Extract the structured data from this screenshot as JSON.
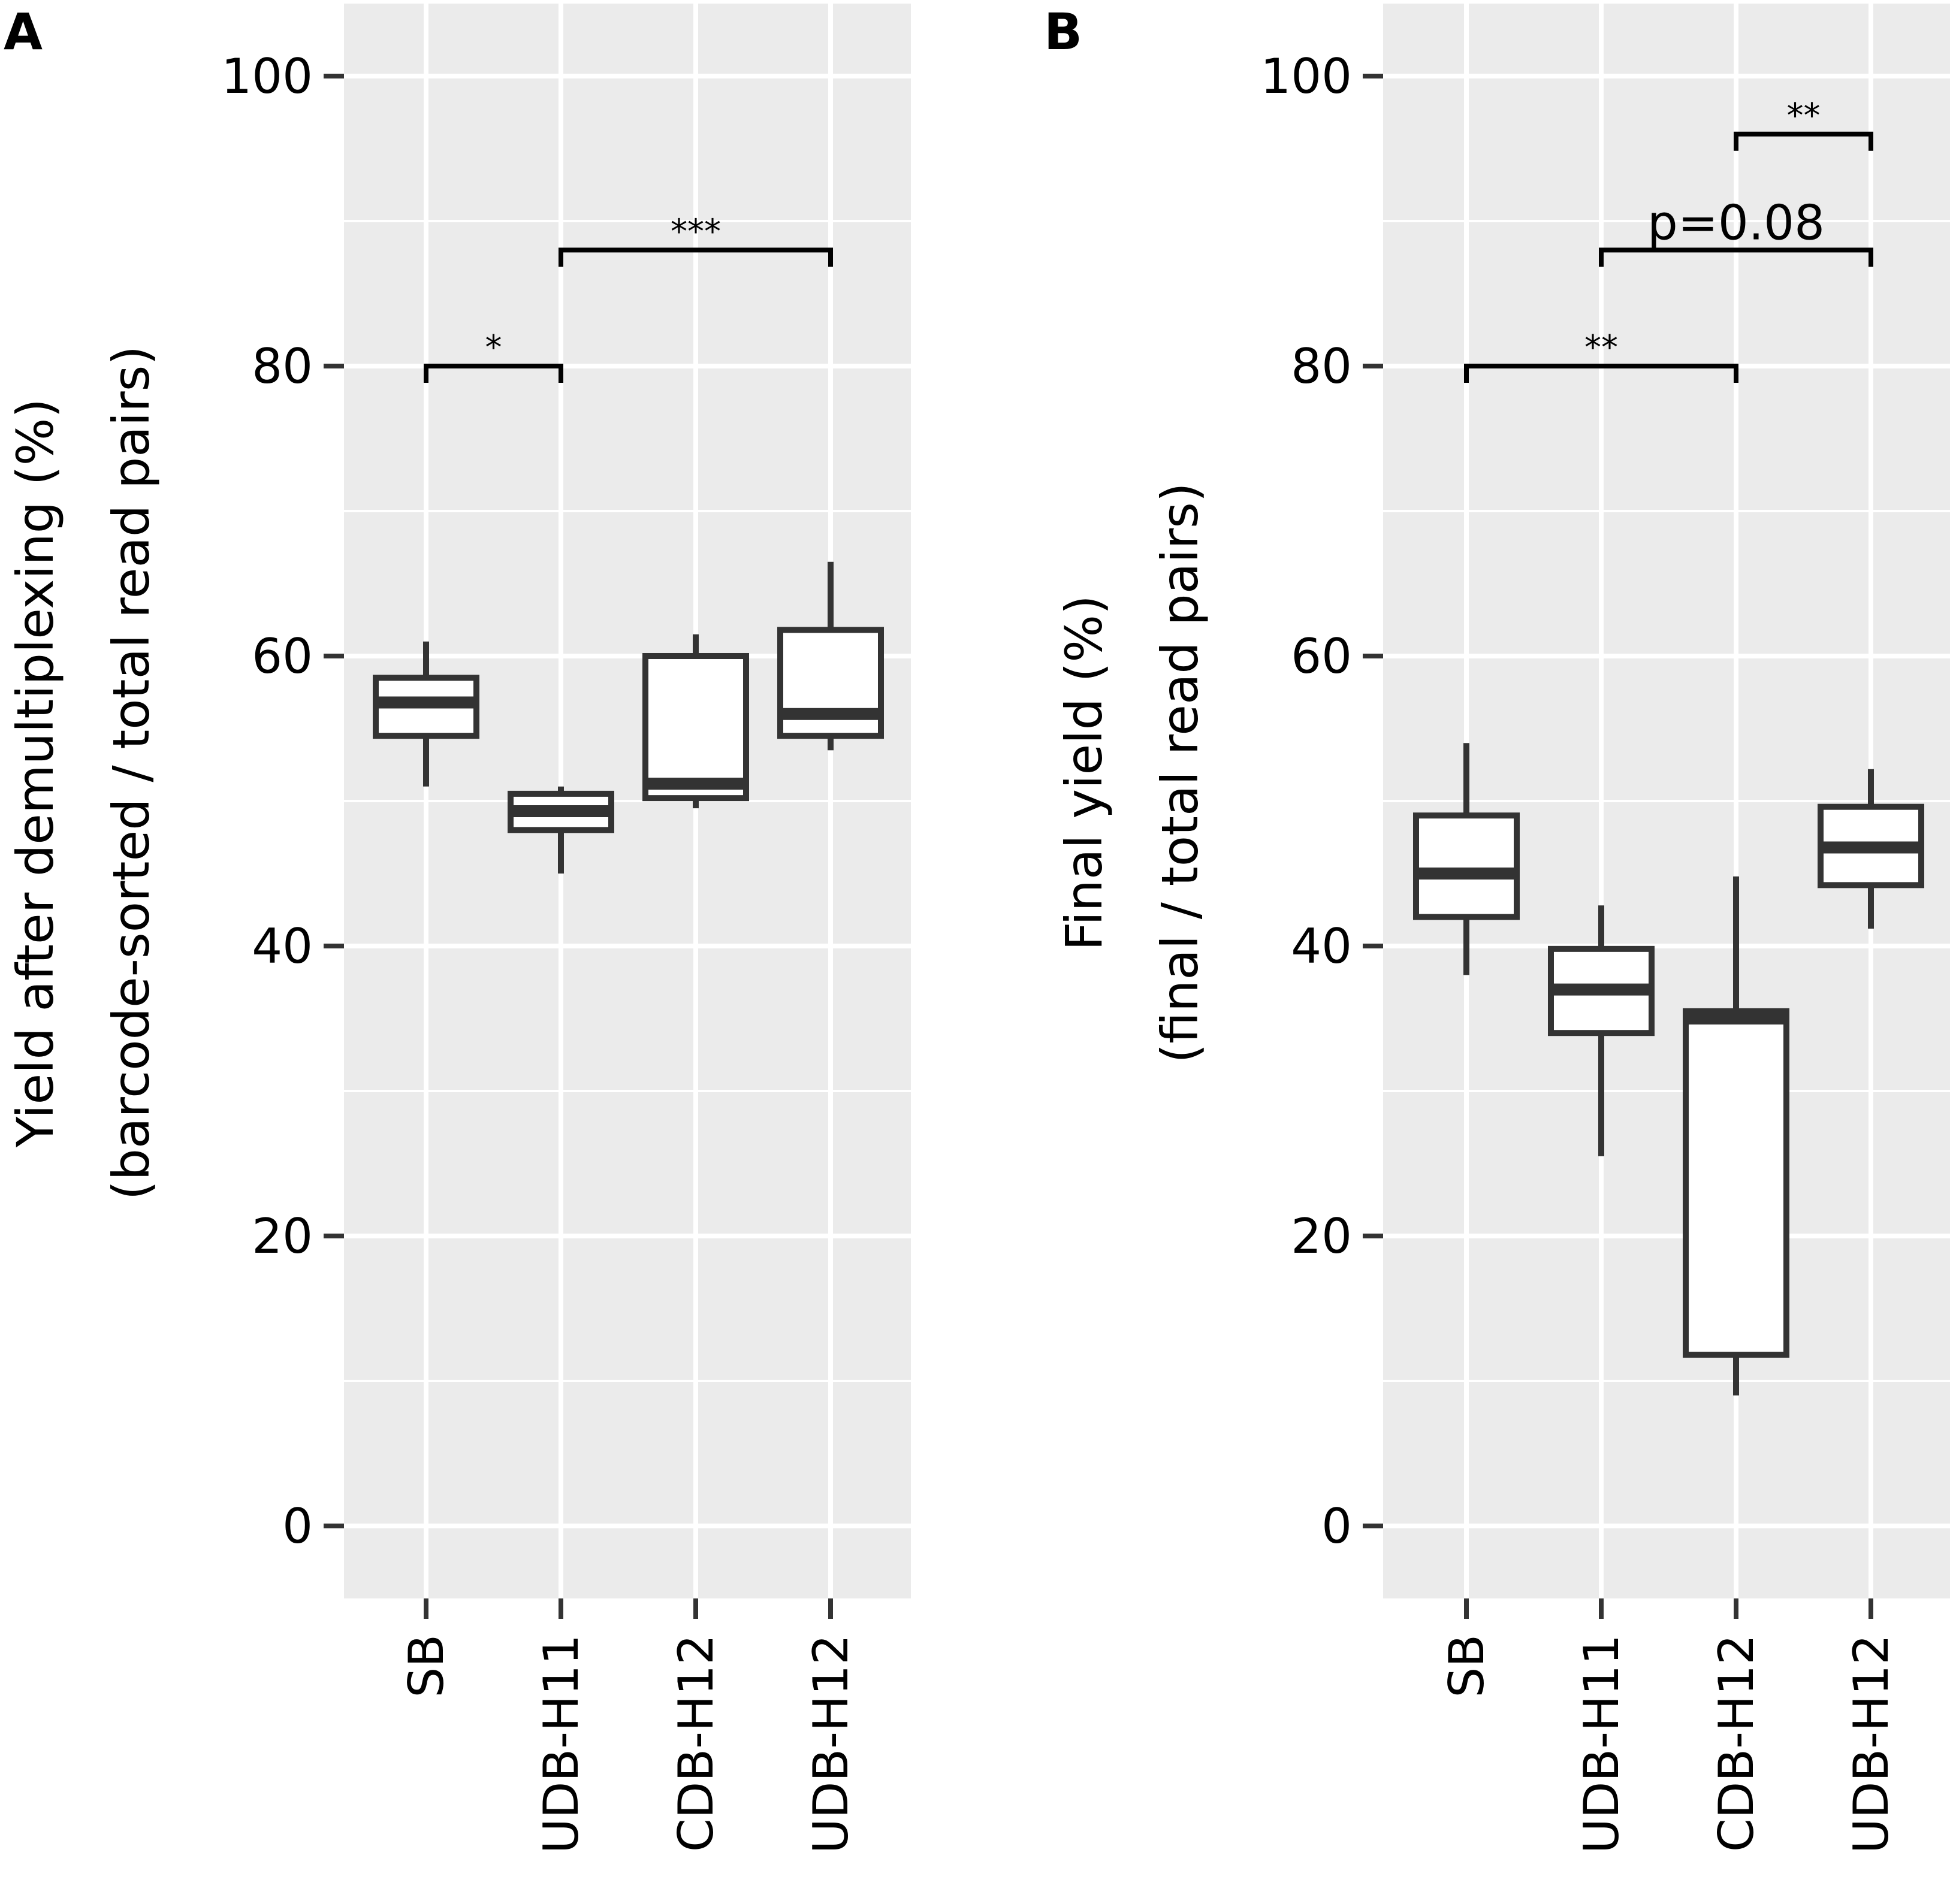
{
  "chart_data": [
    {
      "type": "boxplot",
      "panel_label": "A",
      "ylabel_line1": "Yield after demultiplexing (%)",
      "ylabel_line2": "(barcode-sorted / total read pairs)",
      "categories": [
        "SB",
        "UDB-H11",
        "CDB-H12",
        "UDB-H12"
      ],
      "ylim": [
        -5,
        105
      ],
      "yticks": [
        0,
        20,
        40,
        60,
        80,
        100
      ],
      "ytick_labels": [
        "0",
        "20",
        "40",
        "60",
        "80",
        "100"
      ],
      "boxes": [
        {
          "name": "SB",
          "lower_whisker": 51,
          "q1": 54.5,
          "median": 56.8,
          "q3": 58.5,
          "upper_whisker": 61
        },
        {
          "name": "UDB-H11",
          "lower_whisker": 45,
          "q1": 48,
          "median": 49.3,
          "q3": 50.5,
          "upper_whisker": 51
        },
        {
          "name": "CDB-H12",
          "lower_whisker": 49.5,
          "q1": 50.2,
          "median": 51.2,
          "q3": 60,
          "upper_whisker": 61.5
        },
        {
          "name": "UDB-H12",
          "lower_whisker": 53.5,
          "q1": 54.5,
          "median": 56,
          "q3": 61.8,
          "upper_whisker": 66.5
        }
      ],
      "significance": [
        {
          "from": 0,
          "to": 1,
          "y": 80,
          "label": "*"
        },
        {
          "from": 1,
          "to": 3,
          "y": 88,
          "label": "***"
        }
      ]
    },
    {
      "type": "boxplot",
      "panel_label": "B",
      "ylabel_line1": "Final yield (%)",
      "ylabel_line2": "(final / total read pairs)",
      "categories": [
        "SB",
        "UDB-H11",
        "CDB-H12",
        "UDB-H12"
      ],
      "ylim": [
        -5,
        105
      ],
      "yticks": [
        0,
        20,
        40,
        60,
        80,
        100
      ],
      "ytick_labels": [
        "0",
        "20",
        "40",
        "60",
        "80",
        "100"
      ],
      "boxes": [
        {
          "name": "SB",
          "lower_whisker": 38,
          "q1": 42,
          "median": 45,
          "q3": 49,
          "upper_whisker": 54
        },
        {
          "name": "UDB-H11",
          "lower_whisker": 25.5,
          "q1": 34,
          "median": 37,
          "q3": 39.8,
          "upper_whisker": 42.8
        },
        {
          "name": "CDB-H12",
          "lower_whisker": 9,
          "q1": 11.8,
          "median": 35,
          "q3": 35.5,
          "upper_whisker": 44.8
        },
        {
          "name": "UDB-H12",
          "lower_whisker": 41.2,
          "q1": 44.2,
          "median": 46.8,
          "q3": 49.6,
          "upper_whisker": 52.2
        }
      ],
      "significance": [
        {
          "from": 0,
          "to": 2,
          "y": 80,
          "label": "**"
        },
        {
          "from": 1,
          "to": 3,
          "y": 88,
          "label": "p=0.08"
        },
        {
          "from": 2,
          "to": 3,
          "y": 96,
          "label": "**"
        }
      ]
    }
  ]
}
